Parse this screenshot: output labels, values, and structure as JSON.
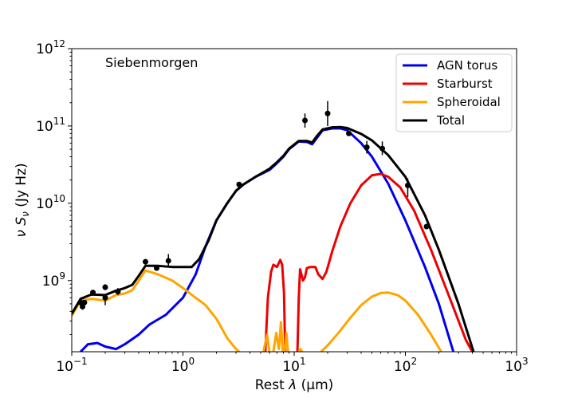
{
  "chart_data": {
    "type": "line",
    "title": "",
    "annotation": "Siebenmorgen",
    "xlabel_prefix": "Rest ",
    "xlabel_symbol": "λ",
    "xlabel_unit": "(μm)",
    "ylabel_symbol": "ν S",
    "ylabel_sub": "ν",
    "ylabel_unit": "(Jy Hz)",
    "xscale": "log",
    "yscale": "log",
    "xlim": [
      0.1,
      1000
    ],
    "ylim": [
      120000000.0,
      1000000000000.0
    ],
    "grid": false,
    "legend_position": "top-right",
    "x_ticks": [
      {
        "value": 0.1,
        "base": "10",
        "exp": "−1"
      },
      {
        "value": 1,
        "base": "10",
        "exp": "0"
      },
      {
        "value": 10,
        "base": "10",
        "exp": "1"
      },
      {
        "value": 100,
        "base": "10",
        "exp": "2"
      },
      {
        "value": 1000,
        "base": "10",
        "exp": "3"
      }
    ],
    "y_ticks": [
      {
        "value": 1000000000.0,
        "base": "10",
        "exp": "9"
      },
      {
        "value": 10000000000.0,
        "base": "10",
        "exp": "10"
      },
      {
        "value": 100000000000.0,
        "base": "10",
        "exp": "11"
      },
      {
        "value": 1000000000000.0,
        "base": "10",
        "exp": "12"
      }
    ],
    "series": [
      {
        "name": "AGN torus",
        "color": "#0000ee",
        "points": [
          [
            0.12,
            120000000.0
          ],
          [
            0.14,
            150000000.0
          ],
          [
            0.17,
            156000000.0
          ],
          [
            0.2,
            140000000.0
          ],
          [
            0.25,
            130000000.0
          ],
          [
            0.3,
            150000000.0
          ],
          [
            0.4,
            200000000.0
          ],
          [
            0.5,
            270000000.0
          ],
          [
            0.7,
            360000000.0
          ],
          [
            1.0,
            600000000.0
          ],
          [
            1.3,
            1200000000.0
          ],
          [
            1.6,
            2800000000.0
          ],
          [
            2.0,
            6000000000.0
          ],
          [
            2.5,
            10000000000.0
          ],
          [
            3.0,
            14500000000.0
          ],
          [
            3.5,
            17500000000.0
          ],
          [
            4.5,
            22000000000.0
          ],
          [
            6.0,
            27000000000.0
          ],
          [
            7.0,
            33000000000.0
          ],
          [
            8.0,
            40000000000.0
          ],
          [
            9.0,
            50000000000.0
          ],
          [
            11.0,
            63000000000.0
          ],
          [
            13.0,
            62000000000.0
          ],
          [
            14.5,
            58000000000.0
          ],
          [
            16.0,
            70000000000.0
          ],
          [
            18.0,
            88000000000.0
          ],
          [
            22.0,
            93000000000.0
          ],
          [
            26.0,
            93000000000.0
          ],
          [
            30.0,
            88000000000.0
          ],
          [
            40.0,
            60000000000.0
          ],
          [
            50.0,
            40000000000.0
          ],
          [
            70.0,
            18000000000.0
          ],
          [
            100.0,
            6000000000.0
          ],
          [
            150.0,
            1500000000.0
          ],
          [
            200.0,
            500000000.0
          ],
          [
            270.0,
            120000000.0
          ]
        ]
      },
      {
        "name": "Starburst",
        "color": "#ee0000",
        "points": [
          [
            5.5,
            120000000.0
          ],
          [
            5.8,
            600000000.0
          ],
          [
            6.2,
            1300000000.0
          ],
          [
            6.5,
            1600000000.0
          ],
          [
            7.0,
            1500000000.0
          ],
          [
            7.5,
            1850000000.0
          ],
          [
            7.8,
            1600000000.0
          ],
          [
            8.1,
            700000000.0
          ],
          [
            8.3,
            120000000.0
          ],
          [
            null,
            null
          ],
          [
            10.7,
            120000000.0
          ],
          [
            11.0,
            600000000.0
          ],
          [
            11.3,
            1400000000.0
          ],
          [
            12.0,
            1000000000.0
          ],
          [
            12.5,
            1100000000.0
          ],
          [
            13.0,
            1450000000.0
          ],
          [
            14.0,
            1500000000.0
          ],
          [
            15.5,
            1500000000.0
          ],
          [
            16.5,
            1200000000.0
          ],
          [
            18.0,
            1050000000.0
          ],
          [
            19.5,
            1300000000.0
          ],
          [
            22.0,
            2400000000.0
          ],
          [
            26.0,
            5000000000.0
          ],
          [
            32.0,
            10000000000.0
          ],
          [
            40.0,
            17000000000.0
          ],
          [
            50.0,
            23000000000.0
          ],
          [
            60.0,
            24000000000.0
          ],
          [
            70.0,
            22000000000.0
          ],
          [
            90.0,
            16000000000.0
          ],
          [
            120.0,
            8000000000.0
          ],
          [
            170.0,
            2500000000.0
          ],
          [
            250.0,
            600000000.0
          ],
          [
            350.0,
            170000000.0
          ],
          [
            400.0,
            120000000.0
          ]
        ]
      },
      {
        "name": "Spheroidal",
        "color": "#ffa500",
        "points": [
          [
            0.1,
            350000000.0
          ],
          [
            0.12,
            550000000.0
          ],
          [
            0.15,
            580000000.0
          ],
          [
            0.2,
            550000000.0
          ],
          [
            0.25,
            650000000.0
          ],
          [
            0.3,
            680000000.0
          ],
          [
            0.35,
            750000000.0
          ],
          [
            0.4,
            1000000000.0
          ],
          [
            0.46,
            1350000000.0
          ],
          [
            0.6,
            1200000000.0
          ],
          [
            0.8,
            1000000000.0
          ],
          [
            1.0,
            800000000.0
          ],
          [
            1.3,
            600000000.0
          ],
          [
            1.6,
            480000000.0
          ],
          [
            2.0,
            320000000.0
          ],
          [
            2.5,
            180000000.0
          ],
          [
            3.0,
            130000000.0
          ],
          [
            3.2,
            120000000.0
          ],
          [
            null,
            null
          ],
          [
            5.3,
            120000000.0
          ],
          [
            5.7,
            200000000.0
          ],
          [
            6.0,
            120000000.0
          ],
          [
            null,
            null
          ],
          [
            6.5,
            120000000.0
          ],
          [
            6.9,
            210000000.0
          ],
          [
            7.3,
            130000000.0
          ],
          [
            7.6,
            290000000.0
          ],
          [
            7.9,
            120000000.0
          ],
          [
            null,
            null
          ],
          [
            8.2,
            120000000.0
          ],
          [
            8.5,
            210000000.0
          ],
          [
            8.8,
            120000000.0
          ],
          [
            null,
            null
          ],
          [
            11.0,
            120000000.0
          ],
          [
            11.4,
            130000000.0
          ],
          [
            11.8,
            120000000.0
          ],
          [
            null,
            null
          ],
          [
            17.5,
            120000000.0
          ],
          [
            20.0,
            145000000.0
          ],
          [
            25.0,
            210000000.0
          ],
          [
            32.0,
            330000000.0
          ],
          [
            40.0,
            480000000.0
          ],
          [
            50.0,
            620000000.0
          ],
          [
            60.0,
            690000000.0
          ],
          [
            70.0,
            700000000.0
          ],
          [
            85.0,
            650000000.0
          ],
          [
            100.0,
            550000000.0
          ],
          [
            130.0,
            360000000.0
          ],
          [
            170.0,
            200000000.0
          ],
          [
            210.0,
            120000000.0
          ]
        ]
      },
      {
        "name": "Total",
        "color": "#000000",
        "points": [
          [
            0.1,
            370000000.0
          ],
          [
            0.12,
            580000000.0
          ],
          [
            0.15,
            660000000.0
          ],
          [
            0.2,
            650000000.0
          ],
          [
            0.25,
            740000000.0
          ],
          [
            0.3,
            800000000.0
          ],
          [
            0.35,
            880000000.0
          ],
          [
            0.4,
            1150000000.0
          ],
          [
            0.46,
            1550000000.0
          ],
          [
            0.6,
            1550000000.0
          ],
          [
            0.8,
            1500000000.0
          ],
          [
            1.0,
            1500000000.0
          ],
          [
            1.2,
            1500000000.0
          ],
          [
            1.4,
            1900000000.0
          ],
          [
            1.7,
            3300000000.0
          ],
          [
            2.0,
            6000000000.0
          ],
          [
            2.5,
            10000000000.0
          ],
          [
            3.0,
            14500000000.0
          ],
          [
            3.5,
            17500000000.0
          ],
          [
            4.5,
            22000000000.0
          ],
          [
            6.0,
            28000000000.0
          ],
          [
            7.0,
            34000000000.0
          ],
          [
            8.0,
            41000000000.0
          ],
          [
            9.0,
            51000000000.0
          ],
          [
            11.0,
            64000000000.0
          ],
          [
            13.0,
            64000000000.0
          ],
          [
            14.5,
            61000000000.0
          ],
          [
            16.0,
            74000000000.0
          ],
          [
            18.0,
            90000000000.0
          ],
          [
            22.0,
            96000000000.0
          ],
          [
            26.0,
            97000000000.0
          ],
          [
            30.0,
            94000000000.0
          ],
          [
            40.0,
            79000000000.0
          ],
          [
            50.0,
            65000000000.0
          ],
          [
            70.0,
            42000000000.0
          ],
          [
            100.0,
            22000000000.0
          ],
          [
            150.0,
            7000000000.0
          ],
          [
            200.0,
            2500000000.0
          ],
          [
            300.0,
            500000000.0
          ],
          [
            410.0,
            120000000.0
          ]
        ]
      }
    ],
    "observations": [
      {
        "x": 0.12,
        "y": 520000000.0,
        "yerr": [
          460000000.0,
          580000000.0
        ]
      },
      {
        "x": 0.125,
        "y": 460000000.0,
        "yerr": [
          420000000.0,
          500000000.0
        ]
      },
      {
        "x": 0.13,
        "y": 520000000.0,
        "yerr": [
          480000000.0,
          560000000.0
        ]
      },
      {
        "x": 0.155,
        "y": 700000000.0,
        "yerr": [
          650000000.0,
          750000000.0
        ]
      },
      {
        "x": 0.2,
        "y": 820000000.0,
        "yerr": [
          750000000.0,
          900000000.0
        ]
      },
      {
        "x": 0.2,
        "y": 600000000.0,
        "yerr": [
          480000000.0,
          660000000.0
        ]
      },
      {
        "x": 0.26,
        "y": 720000000.0,
        "yerr": [
          650000000.0,
          800000000.0
        ]
      },
      {
        "x": 0.46,
        "y": 1750000000.0,
        "yerr": [
          1620000000.0,
          1900000000.0
        ]
      },
      {
        "x": 0.58,
        "y": 1450000000.0,
        "yerr": [
          1350000000.0,
          1550000000.0
        ]
      },
      {
        "x": 0.74,
        "y": 1800000000.0,
        "yerr": [
          1500000000.0,
          2200000000.0
        ]
      },
      {
        "x": 3.2,
        "y": 17500000000.0,
        "yerr": [
          16500000000.0,
          18500000000.0
        ]
      },
      {
        "x": 12.5,
        "y": 118000000000.0,
        "yerr": [
          95000000000.0,
          145000000000.0
        ]
      },
      {
        "x": 20.0,
        "y": 145000000000.0,
        "yerr": [
          100000000000.0,
          210000000000.0
        ]
      },
      {
        "x": 31.0,
        "y": 80000000000.0,
        "yerr": [
          75000000000.0,
          86000000000.0
        ]
      },
      {
        "x": 45.0,
        "y": 53000000000.0,
        "yerr": [
          44000000000.0,
          64000000000.0
        ]
      },
      {
        "x": 62.0,
        "y": 51000000000.0,
        "yerr": [
          42000000000.0,
          63000000000.0
        ]
      },
      {
        "x": 105.0,
        "y": 17000000000.0,
        "yerr": [
          12000000000.0,
          21000000000.0
        ]
      },
      {
        "x": 155.0,
        "y": 5000000000.0,
        "yerr": [
          4600000000.0,
          5400000000.0
        ]
      }
    ]
  }
}
